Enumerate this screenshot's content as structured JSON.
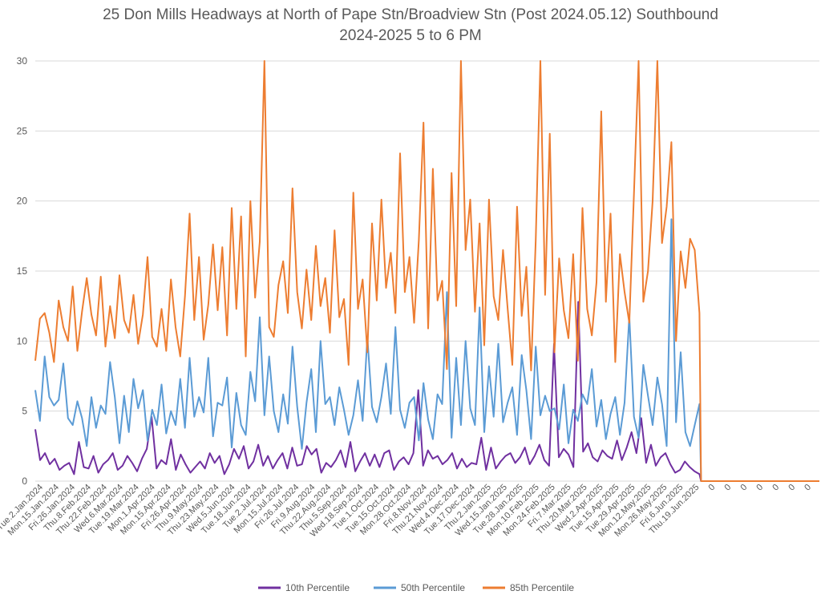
{
  "chart_data": {
    "type": "line",
    "title": "25 Don Mills Headways at North of Pape Stn/Broadview Stn (Post 2024.05.12) Southbound",
    "subtitle": "2024-2025 5 to 6 PM",
    "ylim": [
      0,
      30
    ],
    "yticks": [
      0,
      5,
      10,
      15,
      20,
      25,
      30
    ],
    "grid": true,
    "legend_position": "bottom",
    "colors": {
      "p10": "#7030a0",
      "p50": "#5b9bd5",
      "p85": "#ed7d31",
      "grid": "#d9d9d9",
      "text": "#595959"
    },
    "x_labels": [
      "Tue.2.Jan.2024",
      "Mon.15.Jan.2024",
      "Fri.26.Jan.2024",
      "Thu.8.Feb.2024",
      "Thu.22.Feb.2024",
      "Wed.6.Mar.2024",
      "Tue.19.Mar.2024",
      "Mon.1.Apr.2024",
      "Mon.15.Apr.2024",
      "Fri.26.Apr.2024",
      "Thu.9.May.2024",
      "Thu.23.May.2024",
      "Wed.5.Jun.2024",
      "Tue.18.Jun.2024",
      "Tue.2.Jul.2024",
      "Mon.15.Jul.2024",
      "Fri.26.Jul.2024",
      "Fri.9.Aug.2024",
      "Thu.22.Aug.2024",
      "Thu.5.Sep.2024",
      "Wed.18.Sep.2024",
      "Tue.1.Oct.2024",
      "Tue.15.Oct.2024",
      "Mon.28.Oct.2024",
      "Fri.8.Nov.2024",
      "Thu.21.Nov.2024",
      "Wed.4.Dec.2024",
      "Tue.17.Dec.2024",
      "Thu.2.Jan.2025",
      "Wed.15.Jan.2025",
      "Tue.28.Jan.2025",
      "Mon.10.Feb.2025",
      "Mon.24.Feb.2025",
      "Fri.7.Mar.2025",
      "Thu.20.Mar.2025",
      "Wed.2.Apr.2025",
      "Tue.15.Apr.2025",
      "Tue.29.Apr.2025",
      "Mon.12.May.2025",
      "Mon.26.May.2025",
      "Fri.6.Jun.2025",
      "Thu.19.Jun.2025",
      "0",
      "0",
      "0",
      "0",
      "0",
      "0",
      "0"
    ],
    "series": [
      {
        "name": "10th Percentile",
        "key": "p10",
        "values": [
          3.7,
          1.5,
          2.0,
          1.2,
          1.6,
          0.8,
          1.1,
          1.3,
          0.5,
          2.8,
          1.0,
          0.9,
          1.8,
          0.6,
          1.2,
          1.5,
          2.0,
          0.8,
          1.1,
          1.8,
          1.3,
          0.7,
          1.6,
          2.3,
          4.6,
          0.9,
          1.5,
          1.2,
          3.0,
          0.8,
          1.9,
          1.2,
          0.6,
          1.0,
          1.4,
          0.9,
          2.0,
          1.3,
          1.8,
          0.5,
          1.2,
          2.3,
          1.6,
          2.5,
          0.9,
          1.4,
          2.6,
          1.1,
          1.8,
          0.9,
          1.5,
          2.0,
          0.9,
          2.4,
          1.1,
          1.2,
          2.5,
          1.9,
          2.3,
          0.6,
          1.3,
          1.0,
          1.5,
          2.2,
          1.0,
          2.8,
          0.7,
          1.4,
          2.0,
          1.1,
          1.9,
          1.0,
          2.0,
          2.2,
          0.8,
          1.4,
          1.7,
          1.2,
          2.0,
          6.5,
          1.1,
          2.2,
          1.6,
          1.8,
          1.2,
          1.5,
          2.0,
          0.9,
          1.6,
          1.0,
          1.3,
          1.2,
          3.1,
          0.8,
          2.4,
          0.9,
          1.4,
          1.8,
          2.0,
          1.3,
          1.7,
          2.4,
          1.2,
          1.8,
          2.6,
          1.5,
          1.1,
          9.8,
          1.7,
          2.3,
          1.9,
          1.0,
          12.8,
          2.1,
          2.7,
          1.7,
          1.4,
          2.2,
          1.8,
          1.6,
          2.9,
          1.5,
          2.4,
          3.5,
          2.0,
          4.5,
          1.3,
          2.6,
          1.1,
          1.7,
          2.0,
          1.2,
          0.6,
          0.8,
          1.4,
          1.0,
          0.7,
          0.5
        ],
        "plot_to": 0.847
      },
      {
        "name": "50th Percentile",
        "key": "p50",
        "values": [
          6.5,
          4.3,
          8.9,
          6.0,
          5.4,
          5.8,
          8.4,
          4.5,
          4.0,
          5.7,
          4.5,
          2.5,
          6.0,
          3.8,
          5.4,
          4.8,
          8.5,
          6.0,
          2.7,
          6.1,
          3.5,
          7.3,
          5.2,
          6.5,
          2.9,
          5.1,
          4.0,
          6.9,
          3.4,
          5.0,
          4.0,
          7.3,
          3.8,
          8.8,
          4.6,
          6.0,
          4.9,
          8.8,
          3.2,
          5.6,
          5.4,
          7.4,
          2.4,
          6.3,
          4.0,
          3.3,
          7.8,
          5.7,
          11.7,
          4.7,
          8.9,
          5.0,
          3.5,
          6.2,
          4.1,
          9.6,
          5.3,
          2.3,
          5.6,
          8.0,
          3.5,
          10.0,
          5.5,
          6.0,
          4.0,
          6.7,
          5.1,
          3.3,
          4.7,
          7.2,
          4.3,
          10.3,
          5.3,
          4.2,
          6.0,
          8.4,
          4.8,
          11.0,
          5.1,
          3.8,
          5.6,
          6.0,
          2.9,
          7.0,
          4.4,
          3.0,
          6.2,
          5.5,
          13.5,
          3.1,
          8.8,
          4.0,
          10.0,
          5.2,
          4.0,
          12.4,
          3.5,
          8.2,
          4.6,
          9.8,
          4.2,
          5.6,
          6.7,
          3.3,
          9.0,
          6.5,
          3.0,
          9.6,
          4.7,
          6.1,
          5.0,
          5.2,
          3.7,
          6.9,
          2.7,
          5.1,
          4.3,
          6.2,
          5.5,
          8.0,
          3.9,
          5.8,
          3.0,
          4.8,
          6.0,
          3.3,
          5.6,
          11.8,
          4.6,
          3.1,
          8.3,
          6.1,
          4.0,
          7.4,
          5.5,
          2.5,
          18.7,
          4.2,
          9.2,
          3.5,
          2.5,
          4.0,
          5.5
        ],
        "plot_to": 0.847
      },
      {
        "name": "85th Percentile",
        "key": "p85",
        "values": [
          8.6,
          11.6,
          12.0,
          10.6,
          8.5,
          12.9,
          11.0,
          10.0,
          13.9,
          9.3,
          12.1,
          14.5,
          11.9,
          10.4,
          14.6,
          9.6,
          12.5,
          10.2,
          14.7,
          11.5,
          10.6,
          13.3,
          9.8,
          11.9,
          16.0,
          10.3,
          9.6,
          12.3,
          9.3,
          14.4,
          11.0,
          8.9,
          13.2,
          19.1,
          11.5,
          16.0,
          10.1,
          12.6,
          16.9,
          12.2,
          16.7,
          10.4,
          19.5,
          12.3,
          18.9,
          8.9,
          20.0,
          13.1,
          17.1,
          30.0,
          11.0,
          10.3,
          14.0,
          15.7,
          12.0,
          20.9,
          13.5,
          10.9,
          15.1,
          11.5,
          16.8,
          12.5,
          14.5,
          10.6,
          17.9,
          11.7,
          13.0,
          8.3,
          20.6,
          12.3,
          14.4,
          9.2,
          18.4,
          12.9,
          20.1,
          13.8,
          16.3,
          12.0,
          23.4,
          13.5,
          16.0,
          11.3,
          17.2,
          25.6,
          10.9,
          22.3,
          12.9,
          14.3,
          8.0,
          22.0,
          12.5,
          30.0,
          16.5,
          20.1,
          12.1,
          18.4,
          9.7,
          20.1,
          13.2,
          11.5,
          16.5,
          12.3,
          8.3,
          19.6,
          11.8,
          15.3,
          7.9,
          17.2,
          30.0,
          13.3,
          24.8,
          9.2,
          15.9,
          12.2,
          10.2,
          16.2,
          8.6,
          19.5,
          12.3,
          10.4,
          14.2,
          26.4,
          12.8,
          19.1,
          8.5,
          16.2,
          13.5,
          11.3,
          20.5,
          30.0,
          12.8,
          15.0,
          20.0,
          30.0,
          17.0,
          19.6,
          24.2,
          10.0,
          16.4,
          13.8,
          17.3,
          16.5,
          12.0
        ],
        "plot_to": 0.847
      }
    ]
  }
}
